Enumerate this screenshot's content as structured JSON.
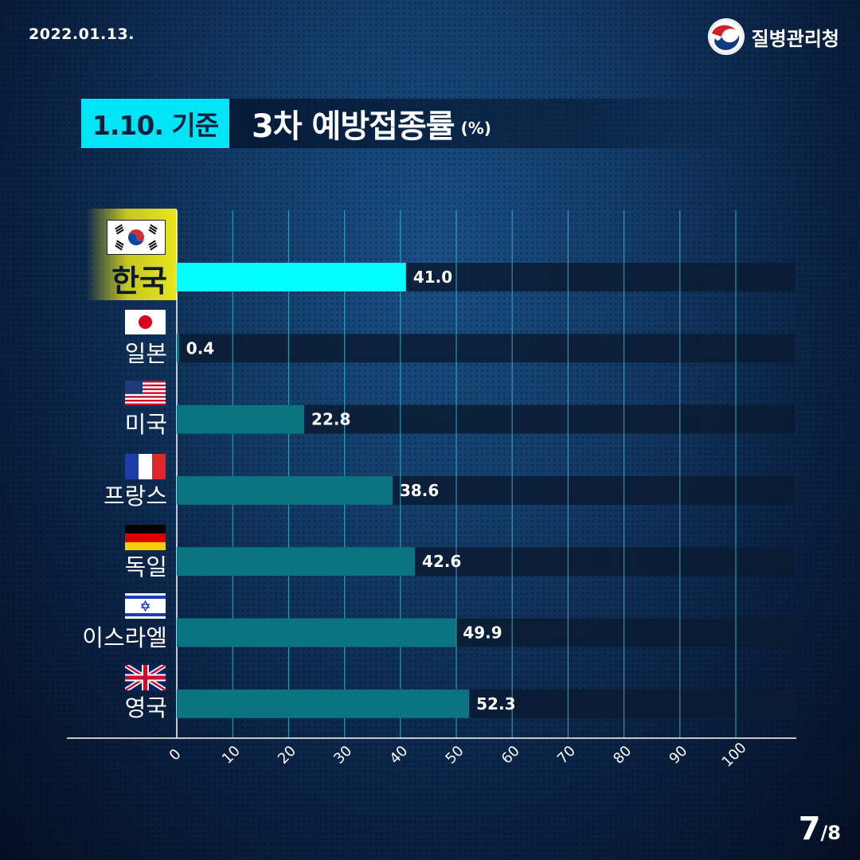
{
  "header": {
    "date": "2022.01.13.",
    "agency": "질병관리청"
  },
  "title": {
    "tag": "1.10. 기준",
    "main": "3차 예방접종률",
    "unit": "(%)"
  },
  "colors": {
    "highlight_bar": "#00ffff",
    "bar": "#0b7480",
    "track": "#0a1b33",
    "gridline": "#2fb4c8",
    "tag_bg": "#00e5f5"
  },
  "chart_data": {
    "type": "bar",
    "orientation": "horizontal",
    "categories": [
      "한국",
      "일본",
      "미국",
      "프랑스",
      "독일",
      "이스라엘",
      "영국"
    ],
    "values": [
      41.0,
      0.4,
      22.8,
      38.6,
      42.6,
      49.9,
      52.3
    ],
    "value_labels": [
      "41.0",
      "0.4",
      "22.8",
      "38.6",
      "42.6",
      "49.9",
      "52.3"
    ],
    "highlighted_category": "한국",
    "xlim": [
      0,
      110
    ],
    "xticks": [
      0,
      10,
      20,
      30,
      40,
      50,
      60,
      70,
      80,
      90,
      100
    ],
    "xtick_labels": [
      "0",
      "10",
      "20",
      "30",
      "40",
      "50",
      "60",
      "70",
      "80",
      "90",
      "100"
    ],
    "grid": true
  },
  "flags": [
    "south-korea-flag-icon",
    "japan-flag-icon",
    "usa-flag-icon",
    "france-flag-icon",
    "germany-flag-icon",
    "israel-flag-icon",
    "uk-flag-icon"
  ],
  "pagination": {
    "current": "7",
    "total": "/8"
  }
}
